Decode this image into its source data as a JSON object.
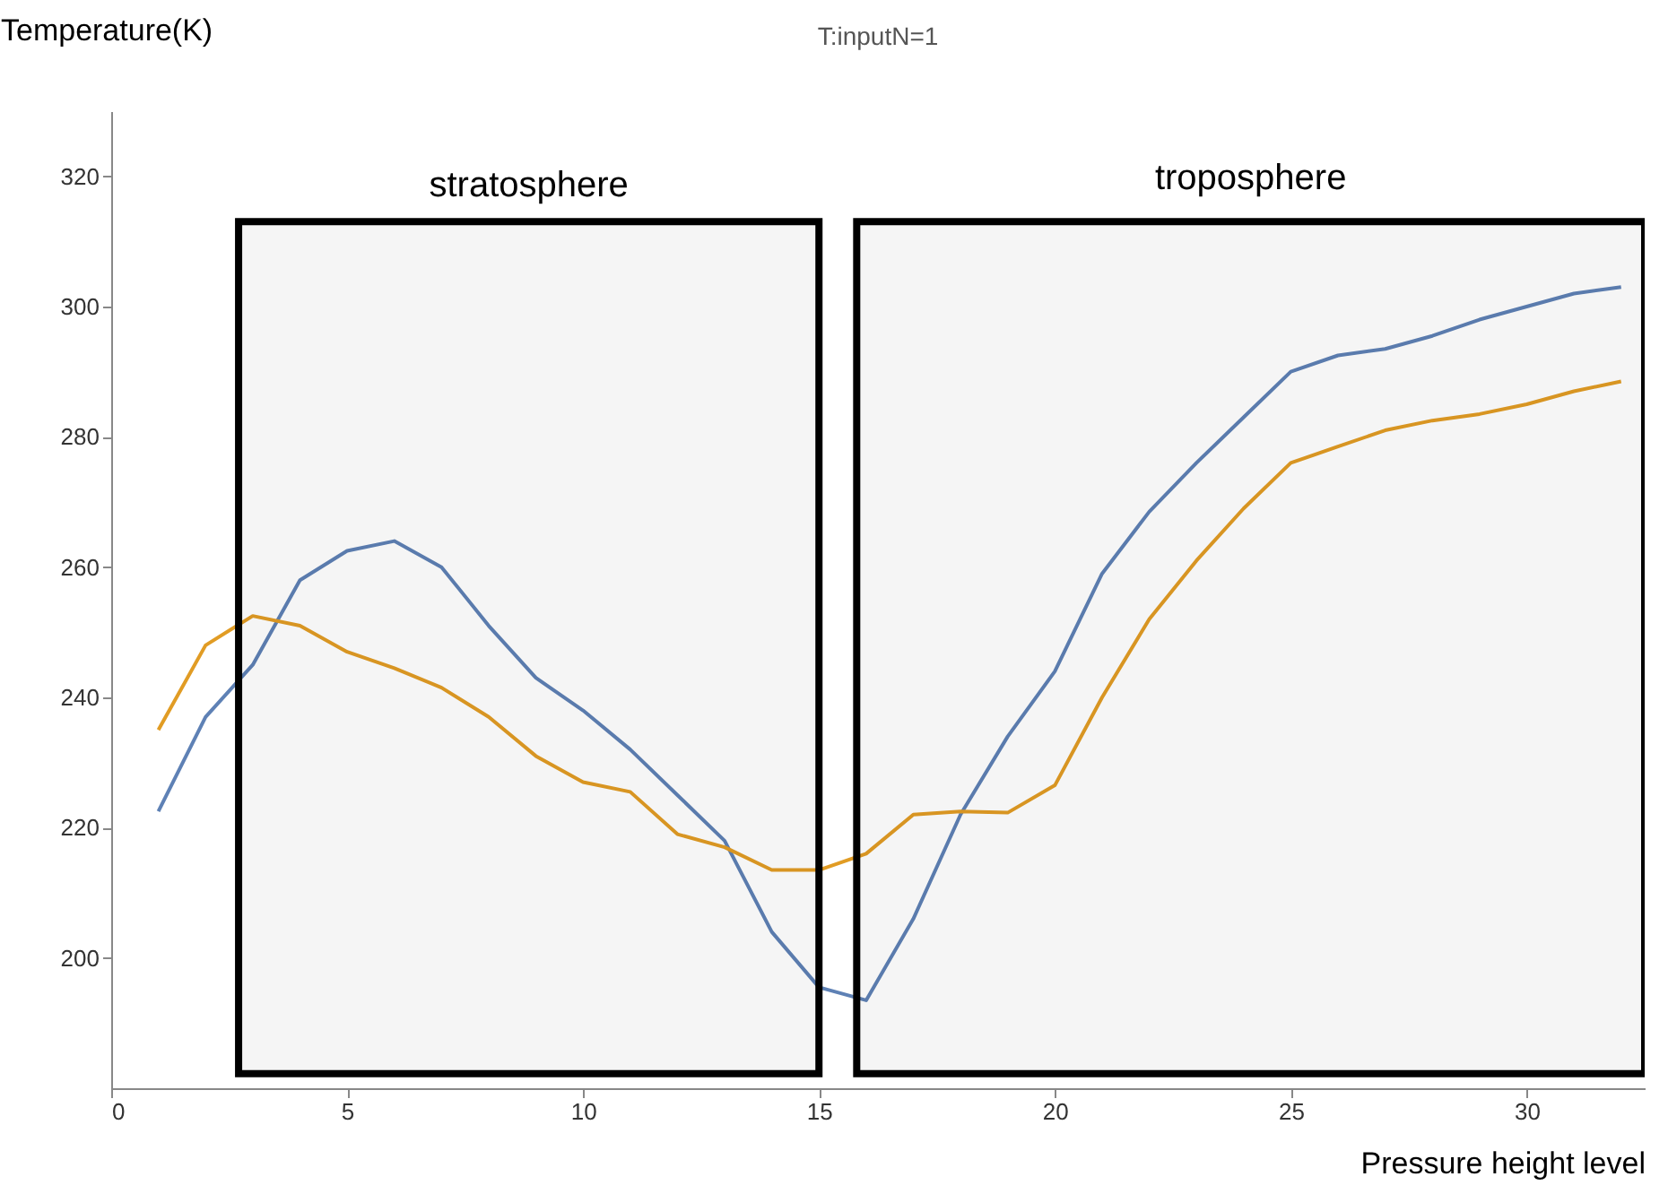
{
  "chart_data": {
    "type": "line",
    "title": "T:inputN=1",
    "xlabel": "Pressure height level",
    "ylabel": "Temperature(K)",
    "x": [
      1,
      2,
      3,
      4,
      5,
      6,
      7,
      8,
      9,
      10,
      11,
      12,
      13,
      14,
      15,
      16,
      17,
      18,
      19,
      20,
      21,
      22,
      23,
      24,
      25,
      26,
      27,
      28,
      29,
      30,
      31,
      32
    ],
    "series": [
      {
        "color": "#5e81b5",
        "values": [
          222.5,
          237,
          245,
          258,
          262.5,
          264,
          260,
          251,
          243,
          238,
          232,
          225,
          218,
          204,
          195.5,
          193.5,
          206,
          222,
          234,
          244,
          259,
          268.5,
          276,
          283,
          290,
          292.5,
          293.5,
          295.5,
          298,
          300,
          302,
          303
        ]
      },
      {
        "color": "#e19c24",
        "values": [
          235,
          248,
          252.5,
          251,
          247,
          244.5,
          241.5,
          237,
          231,
          227,
          225.5,
          219,
          217,
          213.5,
          213.5,
          216,
          222,
          222.5,
          222.3,
          226.5,
          240,
          252,
          261,
          269,
          276,
          278.5,
          281,
          282.5,
          283.5,
          285,
          287,
          288.5
        ]
      }
    ],
    "xlim": [
      0,
      32.5
    ],
    "ylim": [
      180,
      330
    ],
    "xticks": [
      0,
      5,
      10,
      15,
      20,
      25,
      30
    ],
    "yticks": [
      200,
      220,
      240,
      260,
      280,
      300,
      320
    ],
    "grid": false,
    "legend": false,
    "marker": "none",
    "line_style": "solid",
    "bands": [
      {
        "axis": "x",
        "from": 2.7,
        "to": 15,
        "label": "stratosphere",
        "color": "#000000"
      },
      {
        "axis": "x",
        "from": 15.8,
        "to": 32.5,
        "label": "troposphere",
        "color": "#000000"
      }
    ]
  }
}
